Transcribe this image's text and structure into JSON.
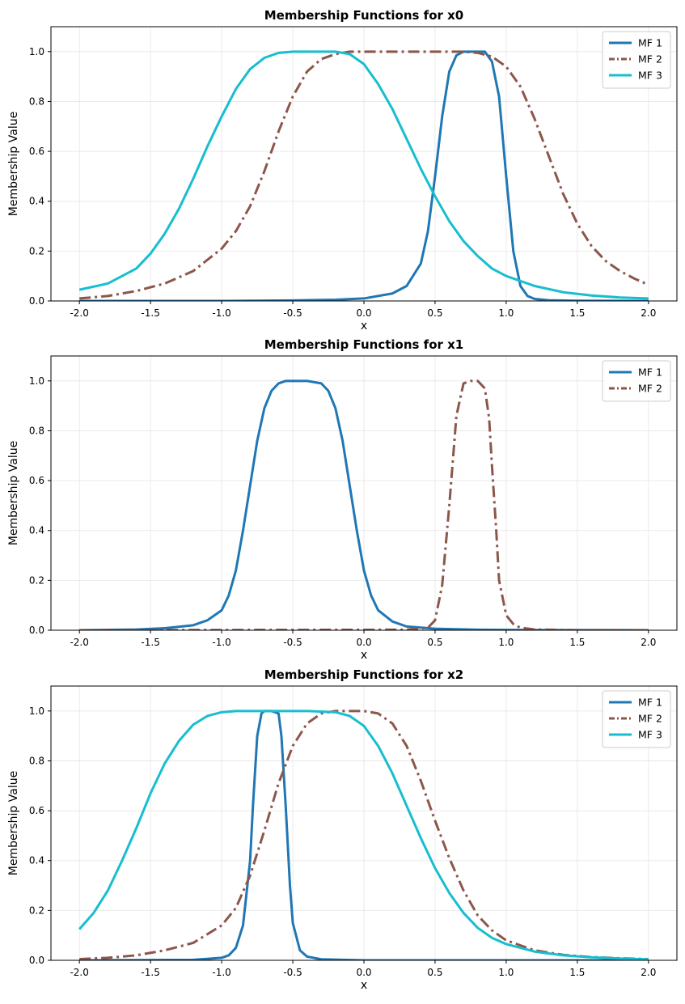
{
  "chart_data": [
    {
      "type": "line",
      "title": "Membership Functions for x0",
      "xlabel": "x",
      "ylabel": "Membership Value",
      "xlim": [
        -2.2,
        2.2
      ],
      "ylim": [
        0,
        1.1
      ],
      "xticks": [
        -2.0,
        -1.5,
        -1.0,
        -0.5,
        0.0,
        0.5,
        1.0,
        1.5,
        2.0
      ],
      "yticks": [
        0.0,
        0.2,
        0.4,
        0.6,
        0.8,
        1.0
      ],
      "grid": true,
      "legend_position": "top-right",
      "series": [
        {
          "name": "MF 1",
          "color": "#1f77b4",
          "dash": "solid",
          "x": [
            -2.0,
            -1.5,
            -1.0,
            -0.5,
            -0.2,
            0.0,
            0.2,
            0.3,
            0.4,
            0.45,
            0.5,
            0.55,
            0.6,
            0.65,
            0.7,
            0.75,
            0.8,
            0.85,
            0.9,
            0.95,
            1.0,
            1.05,
            1.1,
            1.15,
            1.2,
            1.3,
            1.5,
            2.0
          ],
          "values": [
            0.0,
            0.0,
            0.0,
            0.002,
            0.005,
            0.01,
            0.03,
            0.06,
            0.15,
            0.28,
            0.5,
            0.74,
            0.92,
            0.985,
            1.0,
            1.0,
            1.0,
            1.0,
            0.96,
            0.82,
            0.5,
            0.2,
            0.06,
            0.02,
            0.008,
            0.003,
            0.001,
            0.0
          ]
        },
        {
          "name": "MF 2",
          "color": "#8c564b",
          "dash": "dashdot",
          "x": [
            -2.0,
            -1.8,
            -1.6,
            -1.4,
            -1.2,
            -1.0,
            -0.9,
            -0.8,
            -0.7,
            -0.6,
            -0.5,
            -0.4,
            -0.3,
            -0.2,
            -0.1,
            0.0,
            0.2,
            0.4,
            0.6,
            0.7,
            0.8,
            0.9,
            1.0,
            1.1,
            1.2,
            1.3,
            1.4,
            1.5,
            1.6,
            1.7,
            1.8,
            1.9,
            2.0
          ],
          "values": [
            0.01,
            0.02,
            0.04,
            0.07,
            0.12,
            0.21,
            0.28,
            0.38,
            0.52,
            0.68,
            0.82,
            0.92,
            0.97,
            0.99,
            1.0,
            1.0,
            1.0,
            1.0,
            1.0,
            1.0,
            0.995,
            0.98,
            0.94,
            0.86,
            0.73,
            0.58,
            0.43,
            0.31,
            0.22,
            0.16,
            0.12,
            0.09,
            0.065
          ]
        },
        {
          "name": "MF 3",
          "color": "#17becf",
          "dash": "solid",
          "x": [
            -2.0,
            -1.8,
            -1.6,
            -1.5,
            -1.4,
            -1.3,
            -1.2,
            -1.1,
            -1.0,
            -0.9,
            -0.8,
            -0.7,
            -0.6,
            -0.5,
            -0.4,
            -0.3,
            -0.2,
            -0.1,
            0.0,
            0.1,
            0.2,
            0.3,
            0.4,
            0.5,
            0.6,
            0.7,
            0.8,
            0.9,
            1.0,
            1.2,
            1.4,
            1.6,
            1.8,
            2.0
          ],
          "values": [
            0.045,
            0.07,
            0.13,
            0.19,
            0.27,
            0.37,
            0.49,
            0.62,
            0.74,
            0.85,
            0.93,
            0.975,
            0.995,
            1.0,
            1.0,
            1.0,
            1.0,
            0.99,
            0.95,
            0.87,
            0.77,
            0.65,
            0.53,
            0.42,
            0.32,
            0.24,
            0.18,
            0.13,
            0.1,
            0.06,
            0.035,
            0.022,
            0.014,
            0.01
          ]
        }
      ]
    },
    {
      "type": "line",
      "title": "Membership Functions for x1",
      "xlabel": "x",
      "ylabel": "Membership Value",
      "xlim": [
        -2.2,
        2.2
      ],
      "ylim": [
        0,
        1.1
      ],
      "xticks": [
        -2.0,
        -1.5,
        -1.0,
        -0.5,
        0.0,
        0.5,
        1.0,
        1.5,
        2.0
      ],
      "yticks": [
        0.0,
        0.2,
        0.4,
        0.6,
        0.8,
        1.0
      ],
      "grid": true,
      "legend_position": "top-right",
      "series": [
        {
          "name": "MF 1",
          "color": "#1f77b4",
          "dash": "solid",
          "x": [
            -2.0,
            -1.6,
            -1.4,
            -1.2,
            -1.1,
            -1.0,
            -0.95,
            -0.9,
            -0.85,
            -0.8,
            -0.75,
            -0.7,
            -0.65,
            -0.6,
            -0.55,
            -0.5,
            -0.4,
            -0.3,
            -0.25,
            -0.2,
            -0.15,
            -0.1,
            -0.05,
            0.0,
            0.05,
            0.1,
            0.2,
            0.3,
            0.5,
            0.8,
            1.2,
            2.0
          ],
          "values": [
            0.0,
            0.003,
            0.008,
            0.02,
            0.04,
            0.08,
            0.14,
            0.24,
            0.4,
            0.58,
            0.76,
            0.89,
            0.96,
            0.99,
            1.0,
            1.0,
            1.0,
            0.99,
            0.96,
            0.89,
            0.76,
            0.58,
            0.4,
            0.24,
            0.14,
            0.08,
            0.035,
            0.015,
            0.006,
            0.002,
            0.001,
            0.0
          ]
        },
        {
          "name": "MF 2",
          "color": "#8c564b",
          "dash": "dashdot",
          "x": [
            -2.0,
            0.3,
            0.45,
            0.5,
            0.55,
            0.6,
            0.65,
            0.7,
            0.75,
            0.8,
            0.85,
            0.88,
            0.9,
            0.93,
            0.95,
            1.0,
            1.05,
            1.1,
            1.2,
            1.5,
            2.0
          ],
          "values": [
            0.0,
            0.002,
            0.01,
            0.04,
            0.18,
            0.5,
            0.86,
            0.99,
            1.0,
            1.0,
            0.97,
            0.85,
            0.66,
            0.4,
            0.2,
            0.06,
            0.025,
            0.01,
            0.003,
            0.0,
            0.0
          ]
        }
      ]
    },
    {
      "type": "line",
      "title": "Membership Functions for x2",
      "xlabel": "x",
      "ylabel": "Membership Value",
      "xlim": [
        -2.2,
        2.2
      ],
      "ylim": [
        0,
        1.1
      ],
      "xticks": [
        -2.0,
        -1.5,
        -1.0,
        -0.5,
        0.0,
        0.5,
        1.0,
        1.5,
        2.0
      ],
      "yticks": [
        0.0,
        0.2,
        0.4,
        0.6,
        0.8,
        1.0
      ],
      "grid": true,
      "legend_position": "top-right",
      "series": [
        {
          "name": "MF 1",
          "color": "#1f77b4",
          "dash": "solid",
          "x": [
            -2.0,
            -1.2,
            -1.0,
            -0.95,
            -0.9,
            -0.85,
            -0.8,
            -0.78,
            -0.75,
            -0.72,
            -0.7,
            -0.65,
            -0.6,
            -0.58,
            -0.55,
            -0.52,
            -0.5,
            -0.45,
            -0.4,
            -0.3,
            0.0,
            2.0
          ],
          "values": [
            0.0,
            0.002,
            0.01,
            0.02,
            0.05,
            0.14,
            0.4,
            0.62,
            0.9,
            0.99,
            1.0,
            1.0,
            0.99,
            0.9,
            0.62,
            0.3,
            0.15,
            0.04,
            0.015,
            0.004,
            0.0,
            0.0
          ]
        },
        {
          "name": "MF 2",
          "color": "#8c564b",
          "dash": "dashdot",
          "x": [
            -2.0,
            -1.8,
            -1.6,
            -1.4,
            -1.2,
            -1.0,
            -0.9,
            -0.8,
            -0.7,
            -0.6,
            -0.5,
            -0.4,
            -0.3,
            -0.2,
            -0.1,
            0.0,
            0.1,
            0.2,
            0.3,
            0.4,
            0.5,
            0.6,
            0.7,
            0.8,
            0.9,
            1.0,
            1.2,
            1.4,
            1.6,
            1.8,
            2.0
          ],
          "values": [
            0.005,
            0.01,
            0.02,
            0.04,
            0.07,
            0.14,
            0.21,
            0.34,
            0.52,
            0.71,
            0.86,
            0.95,
            0.99,
            1.0,
            1.0,
            1.0,
            0.99,
            0.95,
            0.86,
            0.72,
            0.56,
            0.41,
            0.28,
            0.18,
            0.12,
            0.08,
            0.04,
            0.022,
            0.013,
            0.008,
            0.005
          ]
        },
        {
          "name": "MF 3",
          "color": "#17becf",
          "dash": "solid",
          "x": [
            -2.0,
            -1.9,
            -1.8,
            -1.7,
            -1.6,
            -1.5,
            -1.4,
            -1.3,
            -1.2,
            -1.1,
            -1.0,
            -0.9,
            -0.8,
            -0.6,
            -0.4,
            -0.2,
            -0.1,
            0.0,
            0.1,
            0.2,
            0.3,
            0.4,
            0.5,
            0.6,
            0.7,
            0.8,
            0.9,
            1.0,
            1.2,
            1.4,
            1.6,
            1.8,
            2.0
          ],
          "values": [
            0.125,
            0.19,
            0.28,
            0.4,
            0.53,
            0.67,
            0.79,
            0.88,
            0.945,
            0.98,
            0.995,
            1.0,
            1.0,
            1.0,
            1.0,
            0.995,
            0.98,
            0.94,
            0.86,
            0.75,
            0.62,
            0.49,
            0.37,
            0.27,
            0.19,
            0.13,
            0.09,
            0.065,
            0.035,
            0.02,
            0.012,
            0.007,
            0.004
          ]
        }
      ]
    }
  ]
}
